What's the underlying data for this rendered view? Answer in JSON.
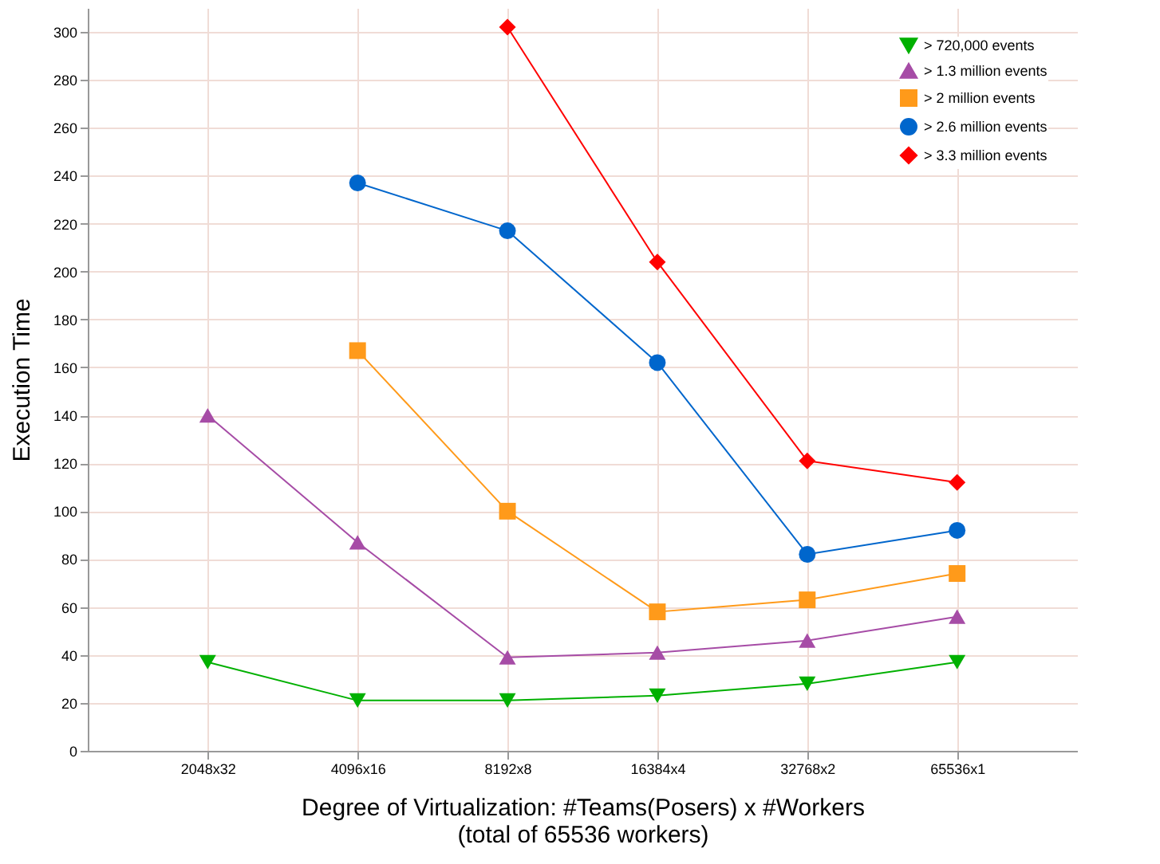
{
  "chart_data": {
    "type": "line",
    "xlabel": "Degree of Virtualization: #Teams(Posers) x #Workers\n(total of 65536 workers)",
    "ylabel": "Execution Time",
    "categories": [
      "2048x32",
      "4096x16",
      "8192x8",
      "16384x4",
      "32768x2",
      "65536x1"
    ],
    "series": [
      {
        "name": "> 720,000 events",
        "color": "#00b000",
        "marker": "triangle-down",
        "values": [
          37,
          21,
          21,
          23,
          28,
          37
        ]
      },
      {
        "name": "> 1.3 million events",
        "color": "#a64ca6",
        "marker": "triangle",
        "values": [
          140,
          87,
          39,
          41,
          46,
          56
        ]
      },
      {
        "name": "> 2 million events",
        "color": "#ff9a1a",
        "marker": "square",
        "values": [
          null,
          167,
          100,
          58,
          63,
          74
        ]
      },
      {
        "name": "> 2.6 million events",
        "color": "#0066cc",
        "marker": "circle",
        "values": [
          null,
          237,
          217,
          162,
          82,
          92
        ]
      },
      {
        "name": "> 3.3 million events",
        "color": "#ff0000",
        "marker": "diamond",
        "values": [
          null,
          null,
          302,
          204,
          121,
          112
        ]
      }
    ],
    "ylim": [
      0,
      310
    ],
    "yticks": [
      0,
      20,
      40,
      60,
      80,
      100,
      120,
      140,
      160,
      180,
      200,
      220,
      240,
      260,
      280,
      300
    ],
    "grid": true,
    "legend": "top right",
    "line_style": "solid"
  }
}
